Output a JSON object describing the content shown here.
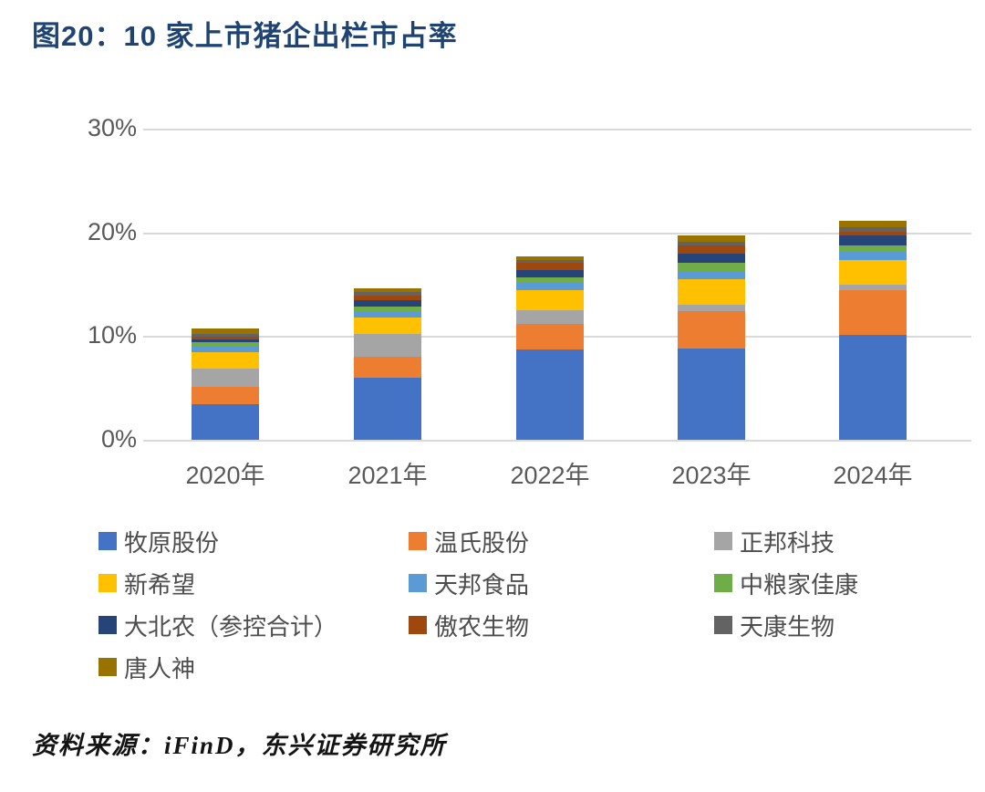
{
  "title": "图20：10 家上市猪企出栏市占率",
  "footer": {
    "source": "资料来源：iFinD，东兴证券研究所"
  },
  "chart_data": {
    "type": "bar",
    "stacked": true,
    "title": "图20：10 家上市猪企出栏市占率",
    "categories": [
      "2020年",
      "2021年",
      "2022年",
      "2023年",
      "2024年"
    ],
    "unit": "%",
    "ylim": [
      0,
      30
    ],
    "yticks": [
      {
        "value": 0,
        "label": "0%"
      },
      {
        "value": 10,
        "label": "10%"
      },
      {
        "value": 20,
        "label": "20%"
      },
      {
        "value": 30,
        "label": "30%"
      }
    ],
    "grid": true,
    "gridline_color": "#D9D9D9",
    "legend_position": "bottom",
    "totals_percent": [
      10.75,
      14.6,
      17.7,
      19.75,
      21.15
    ],
    "series": [
      {
        "name": "牧原股份",
        "color": "#4472C4",
        "values": [
          3.4,
          6.0,
          8.75,
          8.8,
          10.15
        ]
      },
      {
        "name": "温氏股份",
        "color": "#ED7D31",
        "values": [
          1.7,
          2.05,
          2.45,
          3.65,
          4.3
        ]
      },
      {
        "name": "正邦科技",
        "color": "#A5A5A5",
        "values": [
          1.75,
          2.15,
          1.3,
          0.6,
          0.5
        ]
      },
      {
        "name": "新希望",
        "color": "#FFC000",
        "values": [
          1.6,
          1.55,
          1.9,
          2.4,
          2.4
        ]
      },
      {
        "name": "天邦食品",
        "color": "#5B9BD5",
        "values": [
          0.65,
          0.6,
          0.75,
          0.8,
          0.75
        ]
      },
      {
        "name": "中粮家佳康",
        "color": "#70AD47",
        "values": [
          0.3,
          0.5,
          0.5,
          0.8,
          0.65
        ]
      },
      {
        "name": "大北农（参控合计）",
        "color": "#264478",
        "values": [
          0.3,
          0.6,
          0.75,
          0.9,
          0.95
        ]
      },
      {
        "name": "傲农生物",
        "color": "#9E480E",
        "values": [
          0.25,
          0.5,
          0.65,
          0.8,
          0.4
        ]
      },
      {
        "name": "天康生物",
        "color": "#636363",
        "values": [
          0.25,
          0.3,
          0.3,
          0.35,
          0.45
        ]
      },
      {
        "name": "唐人神",
        "color": "#997300",
        "values": [
          0.55,
          0.35,
          0.35,
          0.65,
          0.6
        ]
      }
    ]
  }
}
